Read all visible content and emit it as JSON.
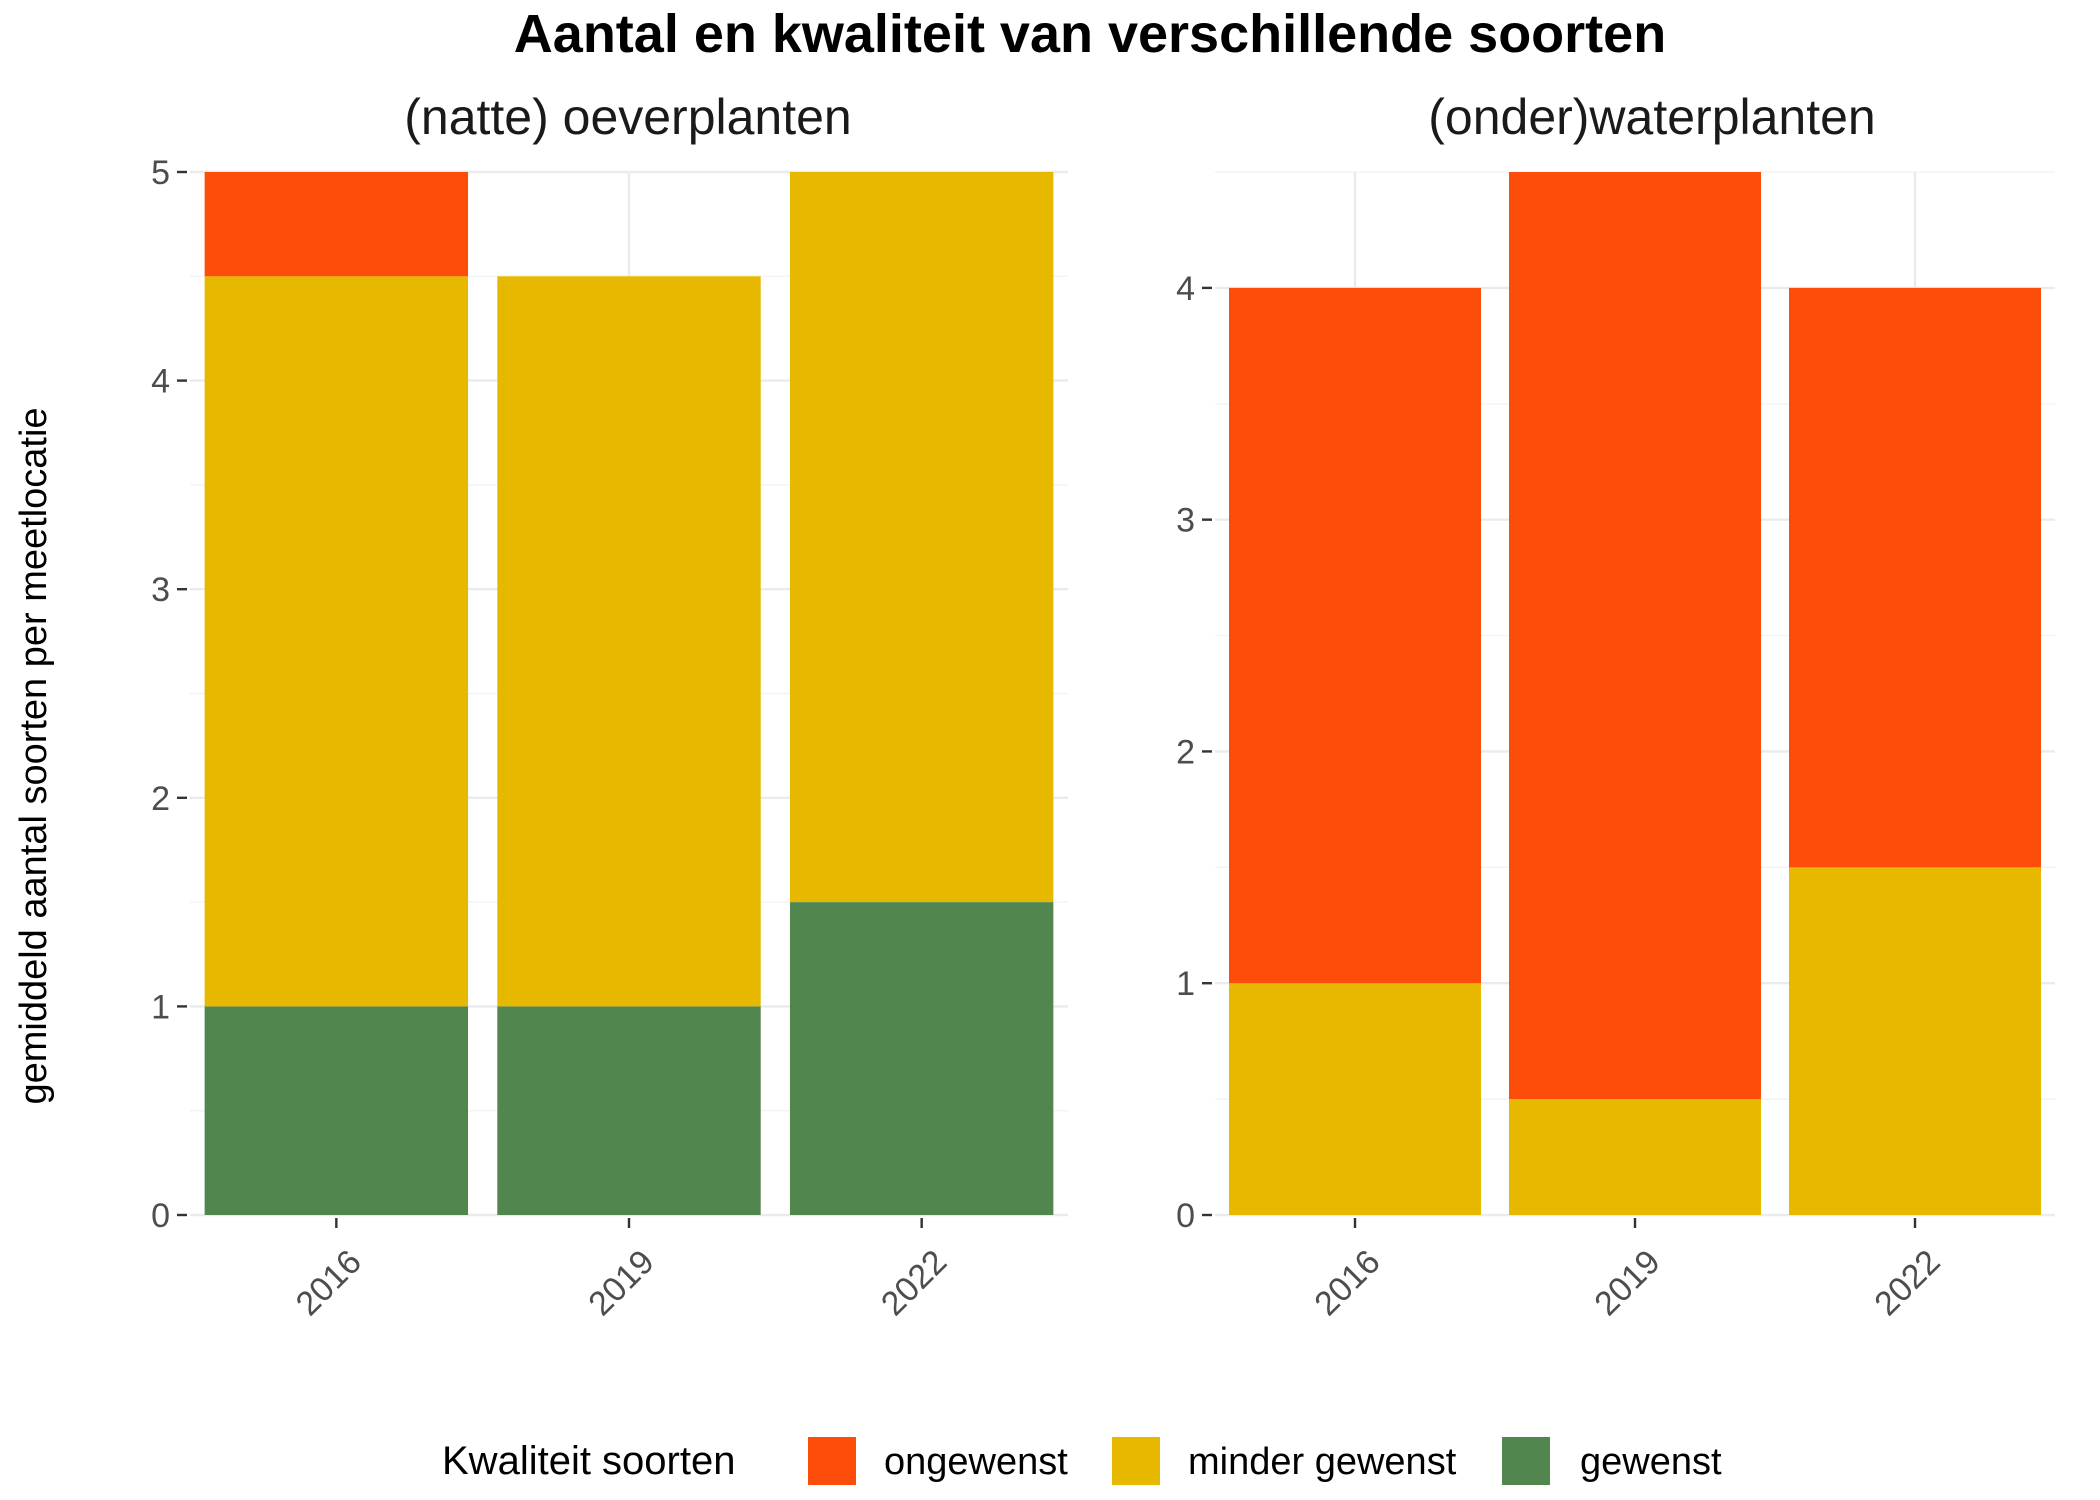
{
  "title": "Aantal en kwaliteit van verschillende soorten",
  "ylabel": "gemiddeld aantal soorten per meetlocatie",
  "legend": {
    "title": "Kwaliteit soorten",
    "position": "bottom",
    "entries": [
      {
        "label": "ongewenst",
        "color": "#FC4E0A"
      },
      {
        "label": "minder gewenst",
        "color": "#E6B800"
      },
      {
        "label": "gewenst",
        "color": "#51874F"
      }
    ]
  },
  "chart_data": [
    {
      "type": "bar",
      "stacked": true,
      "title": "(natte) oeverplanten",
      "categories": [
        "2016",
        "2019",
        "2022"
      ],
      "ylim": [
        0,
        5
      ],
      "yticks": [
        0,
        1,
        2,
        3,
        4,
        5
      ],
      "grid": true,
      "series": [
        {
          "name": "gewenst",
          "color": "#51874F",
          "values": [
            1,
            1,
            1.5
          ]
        },
        {
          "name": "minder gewenst",
          "color": "#E6B800",
          "values": [
            3.5,
            3.5,
            3.5
          ]
        },
        {
          "name": "ongewenst",
          "color": "#FC4E0A",
          "values": [
            0.5,
            0,
            0
          ]
        }
      ]
    },
    {
      "type": "bar",
      "stacked": true,
      "title": "(onder)waterplanten",
      "categories": [
        "2016",
        "2019",
        "2022"
      ],
      "ylim": [
        0,
        4.5
      ],
      "yticks": [
        0,
        1,
        2,
        3,
        4
      ],
      "grid": true,
      "series": [
        {
          "name": "gewenst",
          "color": "#51874F",
          "values": [
            0,
            0,
            0
          ]
        },
        {
          "name": "minder gewenst",
          "color": "#E6B800",
          "values": [
            1,
            0.5,
            1.5
          ]
        },
        {
          "name": "ongewenst",
          "color": "#FC4E0A",
          "values": [
            3,
            4,
            2.5
          ]
        }
      ]
    }
  ]
}
